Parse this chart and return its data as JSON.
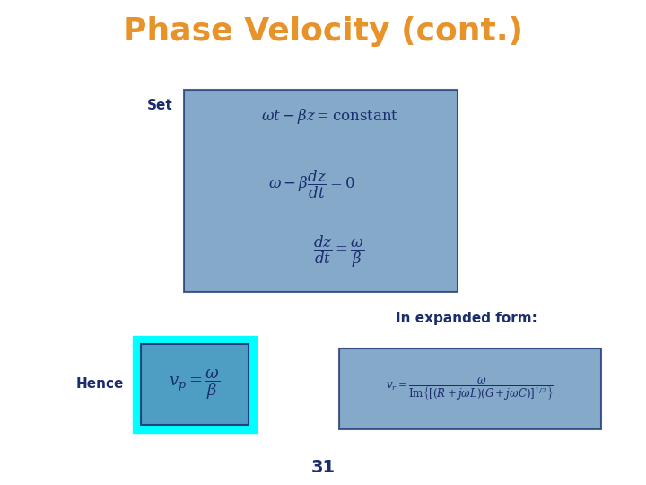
{
  "title": "Phase Velocity (cont.)",
  "title_color": "#E8922A",
  "title_fontsize": 26,
  "bg_color": "#FFFFFF",
  "slide_number": "31",
  "dark_blue": "#1C2D6E",
  "box_blue": "#5B8DB8",
  "cyan_border": "#00FFFF",
  "set_label": "Set",
  "hence_label": "Hence",
  "in_expanded_label": "In expanded form:"
}
